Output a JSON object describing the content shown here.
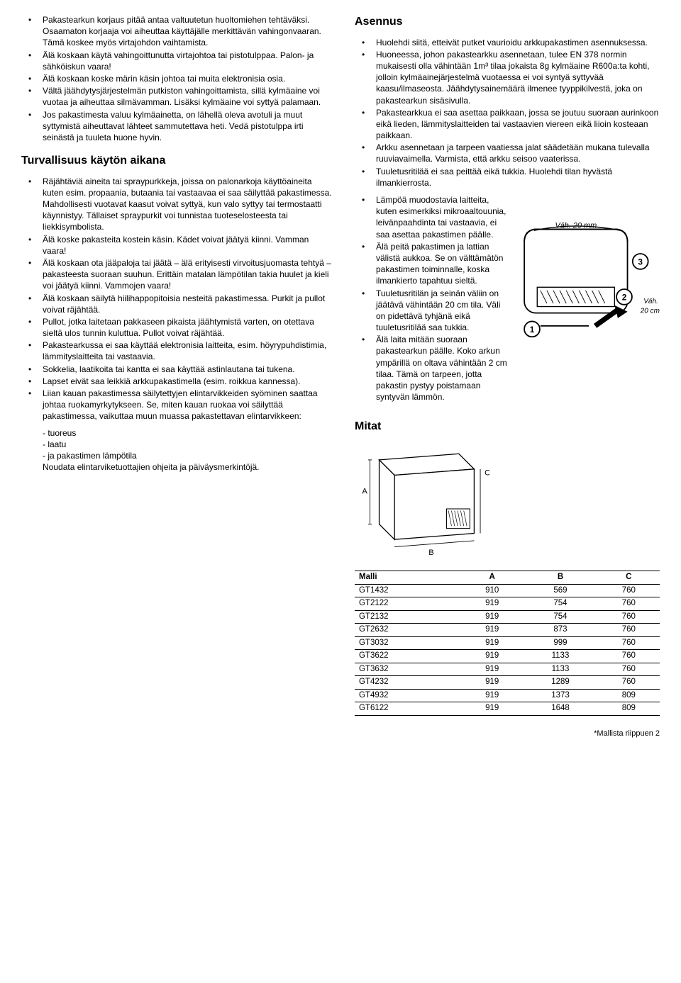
{
  "left": {
    "intro_bullets": [
      "Pakastearkun korjaus pitää antaa valtuutetun huoltomiehen tehtäväksi. Osaamaton korjaaja voi aiheuttaa käyttäjälle merkittävän vahingonvaaran. Tämä koskee myös virtajohdon vaihtamista.",
      "Älä koskaan käytä vahingoittunutta virtajohtoa tai pistotulppaa. Palon- ja sähköiskun vaara!",
      "Älä koskaan koske märin käsin johtoa tai muita elektronisia osia.",
      "Vältä jäähdytysjärjestelmän putkiston vahingoittamista, sillä kylmäaine voi vuotaa ja aiheuttaa silmävamman. Lisäksi kylmäaine voi syttyä palamaan.",
      "Jos pakastimesta valuu kylmäainetta, on lähellä oleva avotuli ja muut syttymistä aiheuttavat lähteet sammutettava heti. Vedä pistotulppa irti seinästä ja tuuleta huone hyvin."
    ],
    "heading_safety": "Turvallisuus käytön aikana",
    "safety_bullets": [
      "Räjähtäviä aineita tai spraypurkkeja, joissa on palonarkoja käyttöaineita kuten esim. propaania, butaania tai vastaavaa ei saa säilyttää pakastimessa. Mahdollisesti vuotavat kaasut voivat syttyä, kun valo syttyy tai termostaatti käynnistyy. Tällaiset spraypurkit voi tunnistaa tuoteselosteesta tai liekkisymbolista.",
      "Älä koske pakasteita kostein käsin. Kädet voivat jäätyä kiinni. Vamman vaara!",
      "Älä koskaan ota jääpaloja tai jäätä – älä erityisesti virvoitusjuomasta tehtyä – pakasteesta suoraan suuhun. Erittäin matalan lämpötilan takia huulet ja kieli voi jäätyä kiinni. Vammojen vaara!",
      "Älä koskaan säilytä hiilihappopitoisia nesteitä pakastimessa. Purkit ja pullot voivat räjähtää.",
      "Pullot, jotka laitetaan pakkaseen pikaista jäähtymistä varten, on otettava sieltä ulos tunnin kuluttua. Pullot voivat räjähtää.",
      "Pakastearkussa ei saa käyttää elektronisia laitteita, esim. höyrypuhdistimia, lämmityslaitteita tai vastaavia.",
      "Sokkelia, laatikoita tai kantta ei saa käyttää astinlautana tai tukena.",
      "Lapset eivät saa leikkiä arkkupakastimella (esim. roikkua kannessa).",
      "Liian kauan pakastimessa säilytettyjen elintarvikkeiden syöminen saattaa johtaa ruokamyrkytykseen. Se, miten kauan ruokaa voi säilyttää pakastimessa, vaikuttaa muun muassa pakastettavan elintarvikkeen:"
    ],
    "sub_lines": [
      "- tuoreus",
      "- laatu",
      "- ja pakastimen lämpötila",
      "Noudata elintarviketuottajien ohjeita ja päiväysmerkintöjä."
    ]
  },
  "right": {
    "heading_install": "Asennus",
    "install_bullets_a": [
      "Huolehdi siitä, etteivät putket vaurioidu arkkupakastimen asennuksessa.",
      "Huoneessa, johon pakastearkku asennetaan, tulee EN 378 normin mukaisesti olla vähintään 1m³ tilaa jokaista 8g kylmäaine R600a:ta kohti, jolloin kylmäainejärjestelmä vuotaessa ei voi syntyä syttyvää kaasu/ilmaseosta. Jäähdytysainemäärä ilmenee tyyppikilvestä, joka on pakastearkun sisäsivulla.",
      "Pakastearkkua ei saa asettaa paikkaan, jossa se joutuu suoraan aurinkoon eikä lieden, lämmityslaitteiden tai vastaavien viereen eikä liioin kosteaan paikkaan.",
      "Arkku asennetaan ja tarpeen vaatiessa jalat säädetään mukana tulevalla ruuviavaimella. Varmista, että arkku seisoo vaaterissa.",
      "Tuuletusritilää ei saa peittää eikä tukkia. Huolehdi tilan hyvästä ilmankierrosta."
    ],
    "install_bullets_b": [
      "Lämpöä muodostavia laitteita, kuten esimerkiksi mikroaaltouunia, leivänpaahdinta tai vastaavia, ei saa asettaa pakastimen päälle.",
      "Älä peitä pakastimen ja lattian välistä aukkoa. Se on välttämätön pakastimen toiminnalle, koska ilmankierto tapahtuu sieltä.",
      "Tuuletusritilän ja seinän väliin on jäätävä vähintään 20 cm tila. Väli on pidettävä tyhjänä eikä tuuletusritilää saa tukkia.",
      "Älä laita mitään suoraan pakastearkun päälle. Koko arkun ympärillä on oltava vähintään 2 cm tilaa. Tämä on tarpeen, jotta pakastin pystyy poistamaan syntyvän lämmön."
    ],
    "img_labels": {
      "top": "Väh. 20 mm",
      "side": "Väh.",
      "side2": "20 cm",
      "n1": "1",
      "n2": "2",
      "n3": "3"
    },
    "heading_dims": "Mitat",
    "dim_labels": {
      "a": "A",
      "b": "B",
      "c": "C"
    },
    "table": {
      "headers": [
        "Malli",
        "A",
        "B",
        "C"
      ],
      "rows": [
        [
          "GT1432",
          "910",
          "569",
          "760"
        ],
        [
          "GT2122",
          "919",
          "754",
          "760"
        ],
        [
          "GT2132",
          "919",
          "754",
          "760"
        ],
        [
          "GT2632",
          "919",
          "873",
          "760"
        ],
        [
          "GT3032",
          "919",
          "999",
          "760"
        ],
        [
          "GT3622",
          "919",
          "1133",
          "760"
        ],
        [
          "GT3632",
          "919",
          "1133",
          "760"
        ],
        [
          "GT4232",
          "919",
          "1289",
          "760"
        ],
        [
          "GT4932",
          "919",
          "1373",
          "809"
        ],
        [
          "GT6122",
          "919",
          "1648",
          "809"
        ]
      ]
    }
  },
  "footer": "*Mallista riippuen 2"
}
